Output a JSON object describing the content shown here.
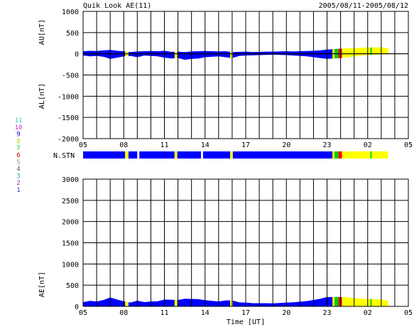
{
  "header": {
    "title": "Quik Look AE(11)",
    "date_range": "2005/08/11-2005/08/12"
  },
  "legend": {
    "entries": [
      {
        "label": "11",
        "color": "#33cccc"
      },
      {
        "label": "10",
        "color": "#cc33cc"
      },
      {
        "label": "9",
        "color": "#0000cc"
      },
      {
        "label": "8",
        "color": "#cccc00"
      },
      {
        "label": "7",
        "color": "#00cc00"
      },
      {
        "label": "6",
        "color": "#cc0000"
      },
      {
        "label": "5",
        "color": "#999999"
      },
      {
        "label": "4",
        "color": "#555555"
      },
      {
        "label": "3",
        "color": "#339999"
      },
      {
        "label": "2",
        "color": "#993399"
      },
      {
        "label": "1",
        "color": "#3333cc"
      }
    ]
  },
  "station_bar": {
    "label": "N.STN",
    "segments": [
      {
        "start": 5.0,
        "end": 8.1,
        "color": "#0000ff"
      },
      {
        "start": 8.1,
        "end": 8.35,
        "color": "#ffff00"
      },
      {
        "start": 8.35,
        "end": 9.0,
        "color": "#0000ff"
      },
      {
        "start": 9.0,
        "end": 9.15,
        "color": "#ffffff"
      },
      {
        "start": 9.15,
        "end": 11.75,
        "color": "#0000ff"
      },
      {
        "start": 11.75,
        "end": 11.95,
        "color": "#ffff00"
      },
      {
        "start": 11.95,
        "end": 13.7,
        "color": "#0000ff"
      },
      {
        "start": 13.7,
        "end": 13.85,
        "color": "#ffffff"
      },
      {
        "start": 13.85,
        "end": 15.85,
        "color": "#0000ff"
      },
      {
        "start": 15.85,
        "end": 16.05,
        "color": "#ffff00"
      },
      {
        "start": 16.05,
        "end": 23.4,
        "color": "#0000ff"
      },
      {
        "start": 23.4,
        "end": 23.55,
        "color": "#ffff00"
      },
      {
        "start": 23.55,
        "end": 23.85,
        "color": "#00cc00"
      },
      {
        "start": 23.85,
        "end": 24.1,
        "color": "#ff0000"
      },
      {
        "start": 24.1,
        "end": 26.2,
        "color": "#ffff00"
      },
      {
        "start": 26.2,
        "end": 26.3,
        "color": "#00cc00"
      },
      {
        "start": 26.3,
        "end": 27.5,
        "color": "#ffff00"
      }
    ]
  },
  "chart_data": [
    {
      "type": "area",
      "ylabel_top": "AU[nT]",
      "ylabel_bottom": "AL[nT]",
      "ylim": [
        -2000,
        1000
      ],
      "yticks": [
        "1000",
        "500",
        "0",
        "-500",
        "-1000",
        "-1500",
        "-2000"
      ],
      "xlim": [
        5,
        29
      ],
      "xticks": [
        "05",
        "08",
        "11",
        "14",
        "17",
        "20",
        "23",
        "02",
        "05"
      ],
      "grid": true,
      "series": [
        {
          "color_segments": "station_bar",
          "x": [
            5,
            5.5,
            6,
            6.5,
            7,
            7.5,
            8,
            8.5,
            9,
            9.5,
            10,
            10.5,
            11,
            11.5,
            12,
            12.5,
            13,
            13.5,
            14,
            14.5,
            15,
            15.5,
            16,
            16.5,
            17,
            17.5,
            18,
            18.5,
            19,
            19.5,
            20,
            20.5,
            21,
            21.5,
            22,
            22.5,
            23,
            23.5,
            24,
            24.5,
            25,
            25.5,
            26,
            26.5,
            27,
            27.5
          ],
          "upper": [
            60,
            70,
            65,
            80,
            90,
            70,
            60,
            40,
            55,
            60,
            65,
            60,
            70,
            45,
            50,
            40,
            55,
            60,
            65,
            60,
            55,
            60,
            40,
            45,
            50,
            40,
            45,
            50,
            50,
            55,
            60,
            55,
            60,
            65,
            70,
            80,
            100,
            110,
            120,
            130,
            135,
            140,
            145,
            150,
            150,
            130
          ],
          "lower": [
            -40,
            -60,
            -50,
            -70,
            -120,
            -90,
            -60,
            -50,
            -80,
            -40,
            -50,
            -60,
            -90,
            -110,
            -100,
            -140,
            -120,
            -110,
            -80,
            -70,
            -60,
            -80,
            -100,
            -50,
            -40,
            -35,
            -30,
            -25,
            -20,
            -25,
            -30,
            -40,
            -50,
            -60,
            -80,
            -100,
            -120,
            -110,
            -100,
            -80,
            -60,
            -40,
            -30,
            -20,
            -10,
            0
          ]
        }
      ]
    },
    {
      "type": "area",
      "ylabel": "AE[nT]",
      "xlabel": "Time [UT]",
      "ylim": [
        0,
        3000
      ],
      "yticks": [
        "3000",
        "2500",
        "2000",
        "1500",
        "1000",
        "500",
        "0"
      ],
      "xlim": [
        5,
        29
      ],
      "xticks": [
        "05",
        "08",
        "11",
        "14",
        "17",
        "20",
        "23",
        "02",
        "05"
      ],
      "grid": true,
      "series": [
        {
          "color_segments": "station_bar",
          "x": [
            5,
            5.5,
            6,
            6.5,
            7,
            7.5,
            8,
            8.5,
            9,
            9.5,
            10,
            10.5,
            11,
            11.5,
            12,
            12.5,
            13,
            13.5,
            14,
            14.5,
            15,
            15.5,
            16,
            16.5,
            17,
            17.5,
            18,
            18.5,
            19,
            19.5,
            20,
            20.5,
            21,
            21.5,
            22,
            22.5,
            23,
            23.5,
            24,
            24.5,
            25,
            25.5,
            26,
            26.5,
            27,
            27.5
          ],
          "values": [
            100,
            130,
            115,
            150,
            210,
            160,
            120,
            90,
            135,
            100,
            115,
            120,
            160,
            155,
            150,
            180,
            175,
            170,
            145,
            130,
            115,
            140,
            140,
            95,
            90,
            75,
            75,
            75,
            70,
            80,
            90,
            95,
            110,
            125,
            150,
            180,
            220,
            220,
            220,
            210,
            195,
            180,
            175,
            170,
            160,
            130
          ]
        }
      ]
    }
  ]
}
